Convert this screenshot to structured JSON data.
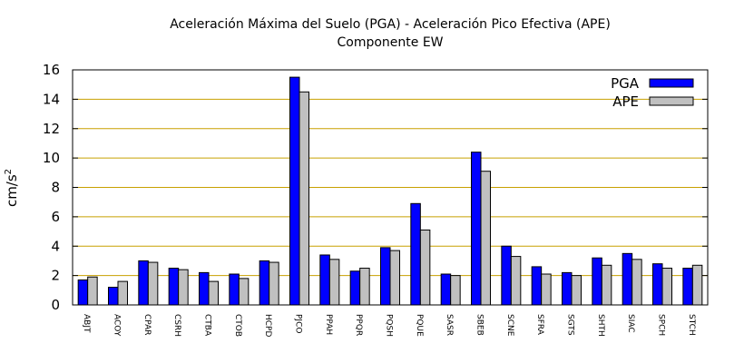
{
  "chart_data": {
    "type": "bar",
    "title_line1": "Aceleración Máxima del Suelo (PGA) -  Aceleración Pico Efectiva (APE)",
    "title_line2": "Componente EW",
    "ylabel": "cm/s",
    "ylabel_superscript": "2",
    "ylim": [
      0,
      16
    ],
    "yticks": [
      0,
      2,
      4,
      6,
      8,
      10,
      12,
      14,
      16
    ],
    "grid": "horizontal",
    "legend_position": "top-right",
    "categories": [
      "ABJT",
      "ACOY",
      "CPAR",
      "CSRH",
      "CTBA",
      "CTOB",
      "HCPD",
      "PJCO",
      "PPAH",
      "PPQR",
      "PQSH",
      "PQUE",
      "SASR",
      "SBEB",
      "SCNE",
      "SFRA",
      "SGTS",
      "SHTH",
      "SIAC",
      "SPCH",
      "STCH"
    ],
    "series": [
      {
        "name": "PGA",
        "color": "#0000ff",
        "values": [
          1.7,
          1.2,
          3.0,
          2.5,
          2.2,
          2.1,
          3.0,
          15.5,
          3.4,
          2.3,
          3.9,
          6.9,
          2.1,
          10.4,
          4.0,
          2.6,
          2.2,
          3.2,
          3.5,
          2.8,
          2.5
        ]
      },
      {
        "name": "APE",
        "color": "#c0c0c0",
        "values": [
          1.9,
          1.6,
          2.9,
          2.4,
          1.6,
          1.8,
          2.9,
          14.5,
          3.1,
          2.5,
          3.7,
          5.1,
          2.0,
          9.1,
          3.3,
          2.1,
          2.0,
          2.7,
          3.1,
          2.5,
          2.7
        ]
      }
    ]
  }
}
